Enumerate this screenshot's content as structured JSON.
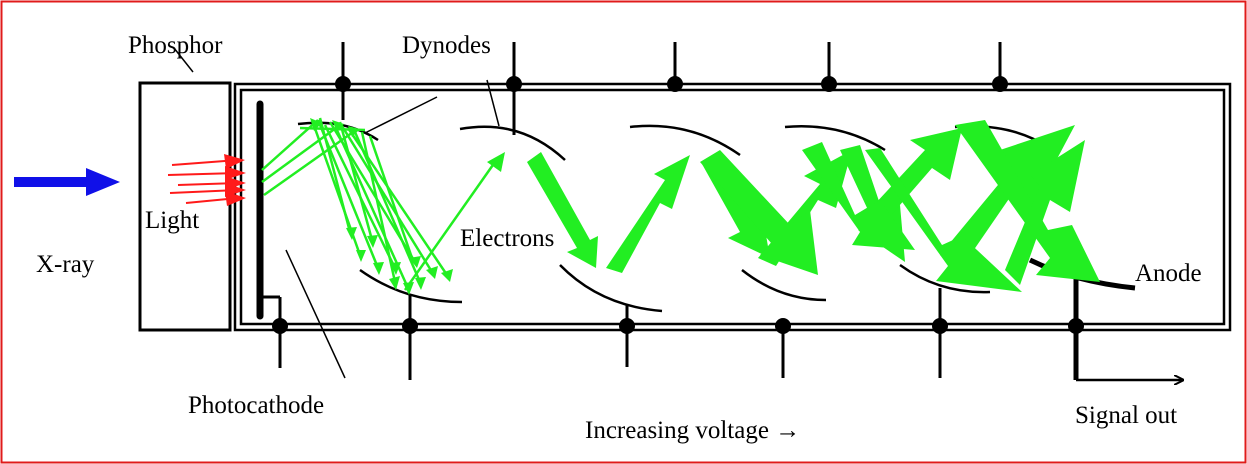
{
  "labels": {
    "phosphor": "Phosphor",
    "dynodes": "Dynodes",
    "light": "Light",
    "xray": "X-ray",
    "electrons": "Electrons",
    "anode": "Anode",
    "photocathode": "Photocathode",
    "increasing_voltage": "Increasing voltage →",
    "signal_out": "Signal out"
  },
  "colors": {
    "frame": "#e01b1b",
    "xray_arrow": "#1010e8",
    "light_arrows": "#ff1a1a",
    "electrons": "#22ee22",
    "lines": "#000000"
  }
}
